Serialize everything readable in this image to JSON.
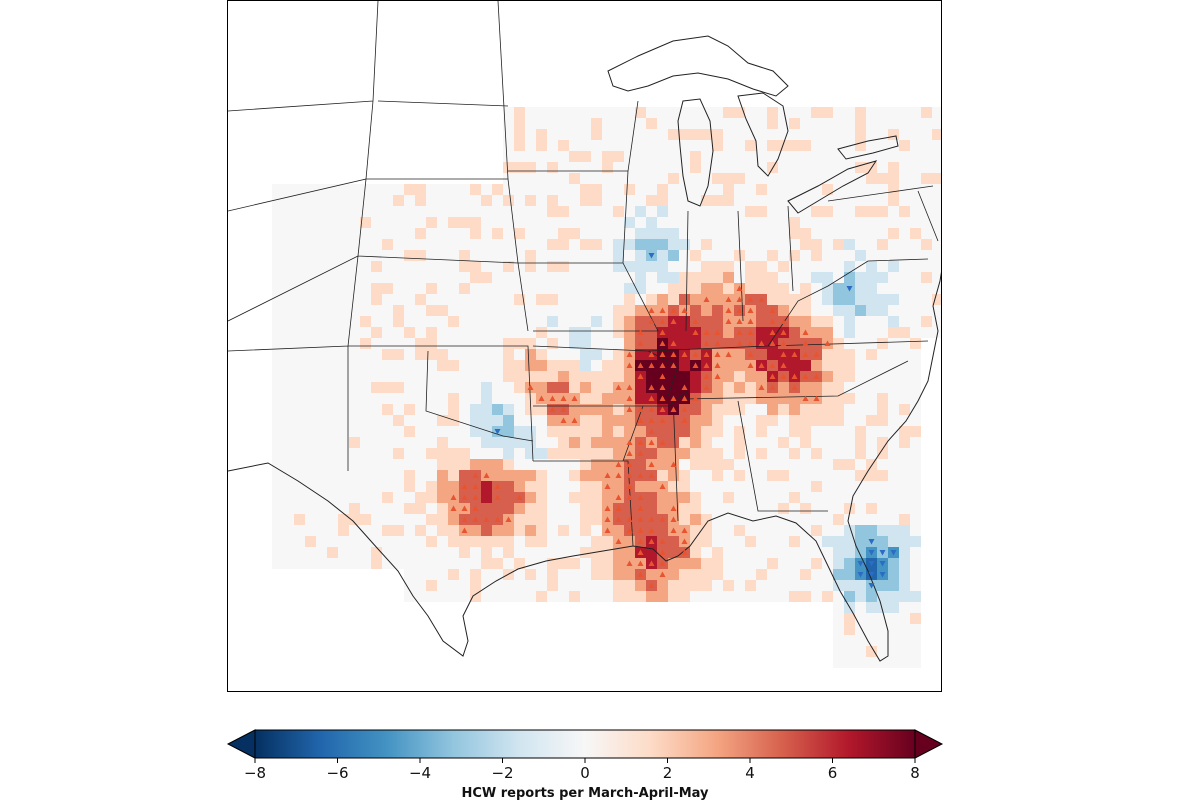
{
  "colorbar": {
    "min": -8,
    "max": 8,
    "ticks": [
      "−8",
      "−6",
      "−4",
      "−2",
      "0",
      "2",
      "4",
      "6",
      "8"
    ],
    "label": "HCW reports per March-April-May",
    "extend": "both",
    "colormap": [
      "#67001f",
      "#b2182b",
      "#d6604d",
      "#f4a582",
      "#fddbc7",
      "#f7f7f7",
      "#d1e5f0",
      "#92c5de",
      "#4393c3",
      "#2166ac",
      "#053061"
    ]
  },
  "map": {
    "region": "Central and Eastern United States",
    "marker_up": "triangle-up",
    "marker_down": "triangle-down",
    "land_color": "#f4f4f4",
    "line_color": "#000000"
  }
}
